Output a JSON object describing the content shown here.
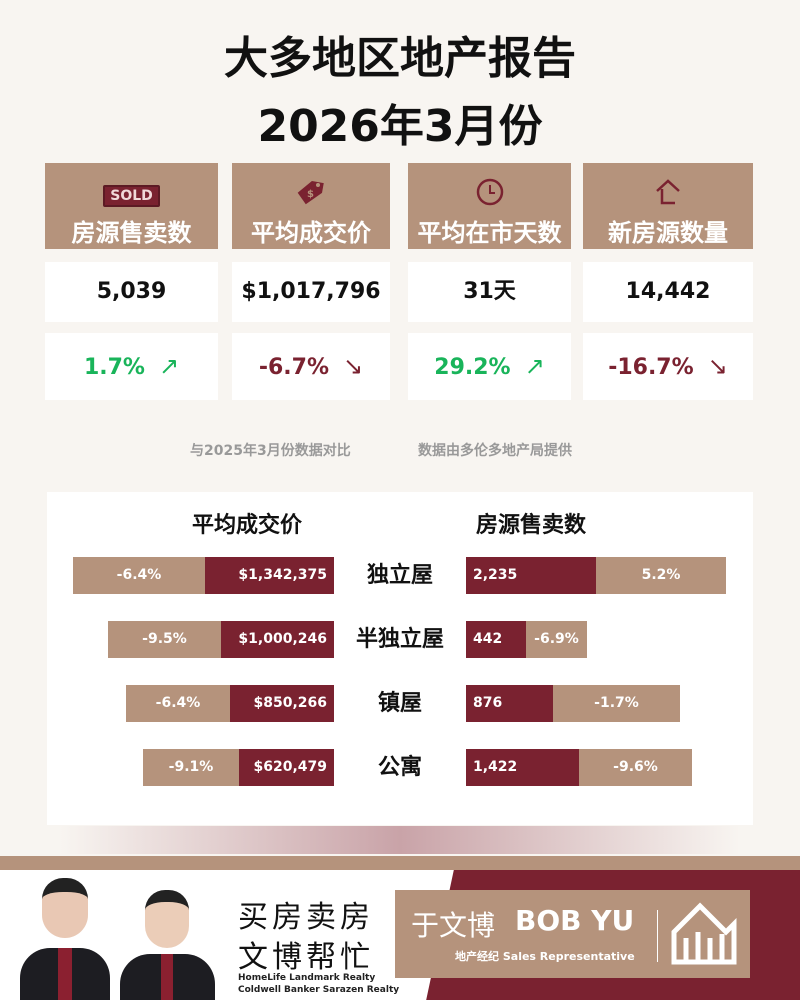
{
  "title": {
    "line1": "大多地区地产报告",
    "line2": "2026年3月份"
  },
  "stats": [
    {
      "label": "房源售卖数",
      "icon": "sold-sign-icon",
      "icon_text": "SOLD",
      "value": "5,039",
      "change": "1.7%",
      "direction": "up"
    },
    {
      "label": "平均成交价",
      "icon": "price-tag-icon",
      "value": "$1,017,796",
      "change": "-6.7%",
      "direction": "down"
    },
    {
      "label": "平均在市天数",
      "icon": "clock-icon",
      "value": "31天",
      "change": "29.2%",
      "direction": "up"
    },
    {
      "label": "新房源数量",
      "icon": "house-icon",
      "value": "14,442",
      "change": "-16.7%",
      "direction": "down"
    }
  ],
  "notes": {
    "comparison": "与2025年3月份数据对比",
    "source": "数据由多伦多地产局提供"
  },
  "breakdown": {
    "price_title": "平均成交价",
    "sales_title": "房源售卖数",
    "rows": [
      {
        "type": "独立屋",
        "price": "$1,342,375",
        "price_change": "-6.4%",
        "sales": "2,235",
        "sales_change": "5.2%"
      },
      {
        "type": "半独立屋",
        "price": "$1,000,246",
        "price_change": "-9.5%",
        "sales": "442",
        "sales_change": "-6.9%"
      },
      {
        "type": "镇屋",
        "price": "$850,266",
        "price_change": "-6.4%",
        "sales": "876",
        "sales_change": "-1.7%"
      },
      {
        "type": "公寓",
        "price": "$620,479",
        "price_change": "-9.1%",
        "sales": "1,422",
        "sales_change": "-9.6%"
      }
    ]
  },
  "footer": {
    "slogan1": "买房卖房",
    "slogan2": "文博帮忙",
    "brokerage1": "HomeLife Landmark Realty",
    "brokerage2": "Coldwell Banker Sarazen Realty",
    "name_cn": "于文博",
    "name_en": "BOB YU",
    "role_cn": "地产经纪",
    "role_en": "Sales Representative",
    "logo": "WY"
  },
  "colors": {
    "tan": "#b5937c",
    "maroon": "#7a2230",
    "green": "#19b45a"
  }
}
